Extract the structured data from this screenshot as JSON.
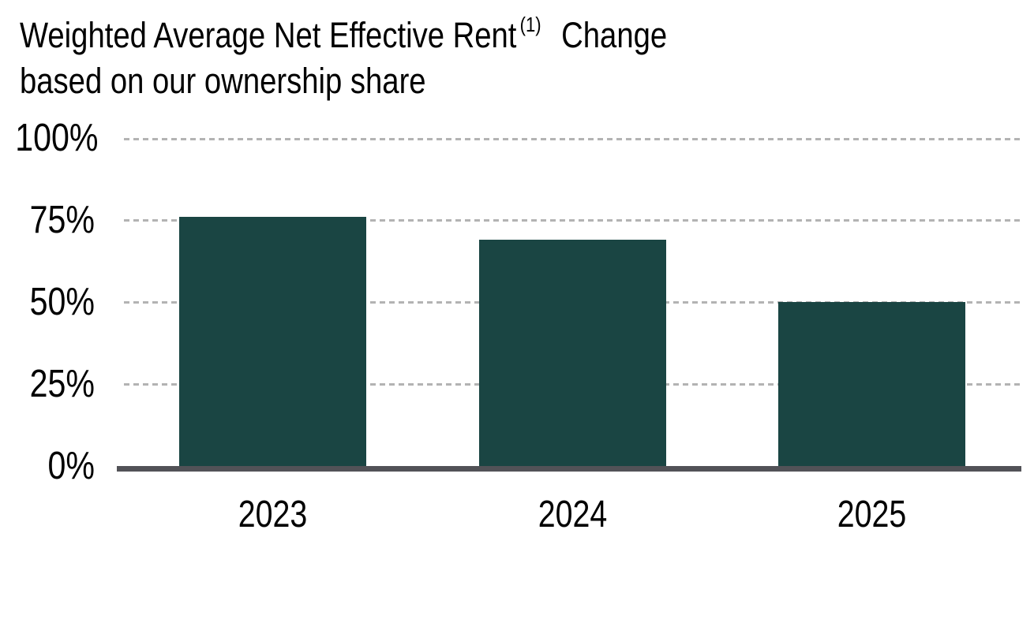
{
  "title": {
    "line1_main": "Weighted Average Net Effective Rent",
    "superscript": "(1)",
    "line1_suffix": "Change",
    "line2": "based on our ownership share"
  },
  "chart_data": {
    "type": "bar",
    "title": "Weighted Average Net Effective Rent (1) Change based on our ownership share",
    "categories": [
      "2023",
      "2024",
      "2025"
    ],
    "values": [
      76,
      69,
      50
    ],
    "unit": "%",
    "xlabel": "",
    "ylabel": "",
    "ylim": [
      0,
      100
    ],
    "yticks": [
      0,
      25,
      50,
      75,
      100
    ],
    "ytick_labels": [
      "0%",
      "25%",
      "50%",
      "75%",
      "100%"
    ],
    "grid": "horizontal-dashed",
    "legend": "none",
    "colors": {
      "bar": "#1A4543",
      "axis_line": "#525257",
      "gridline": "#B3B3B3",
      "text": "#000000",
      "background": "#FFFFFF"
    }
  }
}
